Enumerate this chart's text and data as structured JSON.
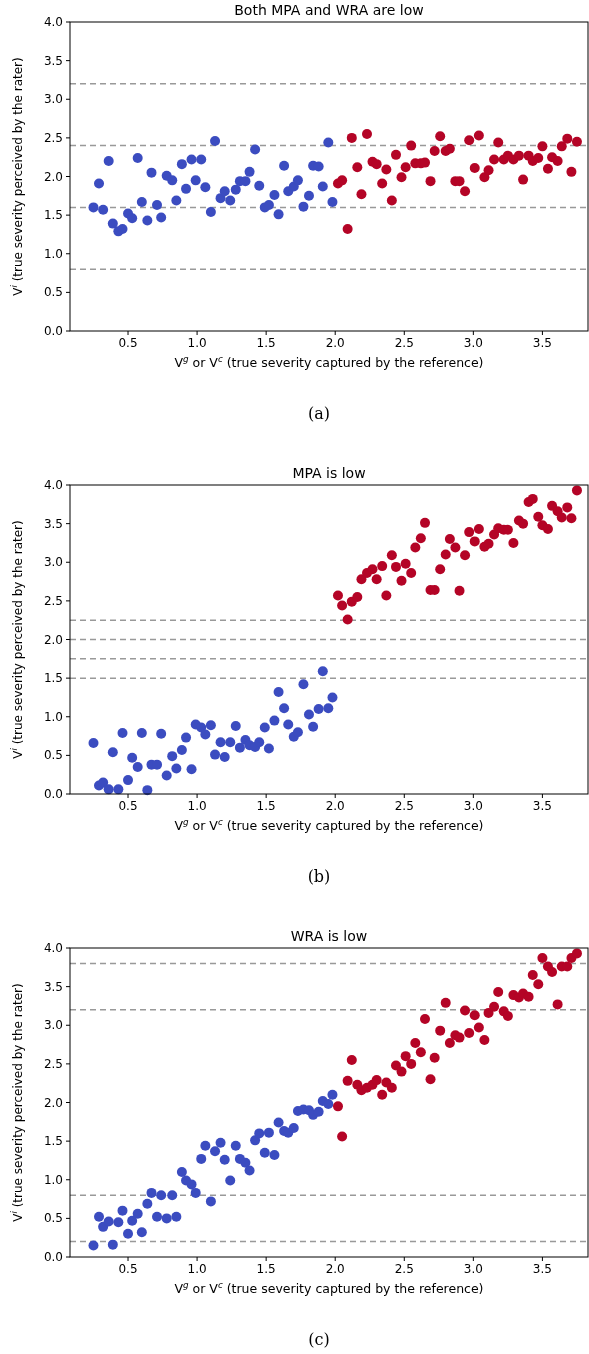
{
  "chart_data": [
    {
      "type": "scatter",
      "title": "Both MPA and WRA are low",
      "xlabel": "V$^{g}$ or V$^{c}$ (true severity captured by the reference)",
      "ylabel": "V$^{i}$ (true severity perceived by the rater)",
      "annotations": [
        "(a)"
      ],
      "marker": "circle",
      "grid": false,
      "xlim": [
        0.08,
        3.83
      ],
      "ylim": [
        0,
        4
      ],
      "xticks": [
        {
          "value": 0.5,
          "label": "0.5"
        },
        {
          "value": 1,
          "label": "1.0"
        },
        {
          "value": 1.5,
          "label": "1.5"
        },
        {
          "value": 2,
          "label": "2.0"
        },
        {
          "value": 2.5,
          "label": "2.5"
        },
        {
          "value": 3,
          "label": "3.0"
        },
        {
          "value": 3.5,
          "label": "3.5"
        }
      ],
      "yticks": [
        {
          "value": 0,
          "label": "0.0"
        },
        {
          "value": 0.5,
          "label": "0.5"
        },
        {
          "value": 1,
          "label": "1.0"
        },
        {
          "value": 1.5,
          "label": "1.5"
        },
        {
          "value": 2,
          "label": "2.0"
        },
        {
          "value": 2.5,
          "label": "2.5"
        },
        {
          "value": 3,
          "label": "3.0"
        },
        {
          "value": 3.5,
          "label": "3.5"
        },
        {
          "value": 4,
          "label": "4.0"
        }
      ],
      "ref_lines": [
        {
          "axis": "y",
          "value": 3.2,
          "color": "#999999",
          "line_style": "dashed"
        },
        {
          "axis": "y",
          "value": 2.4,
          "color": "#999999",
          "line_style": "dashed"
        },
        {
          "axis": "y",
          "value": 1.6,
          "color": "#999999",
          "line_style": "dashed"
        },
        {
          "axis": "y",
          "value": 0.8,
          "color": "#999999",
          "line_style": "dashed"
        }
      ],
      "series": [
        {
          "color": "#3b4cc0",
          "x": [
            0.25,
            0.29,
            0.32,
            0.36,
            0.39,
            0.43,
            0.46,
            0.5,
            0.53,
            0.57,
            0.6,
            0.64,
            0.67,
            0.71,
            0.74,
            0.78,
            0.82,
            0.85,
            0.89,
            0.92,
            0.96,
            0.99,
            1.03,
            1.06,
            1.1,
            1.13,
            1.17,
            1.2,
            1.24,
            1.28,
            1.31,
            1.35,
            1.38,
            1.42,
            1.45,
            1.49,
            1.52,
            1.56,
            1.59,
            1.63,
            1.66,
            1.7,
            1.73,
            1.77,
            1.81,
            1.84,
            1.88,
            1.91,
            1.95,
            1.98
          ],
          "values": [
            1.6,
            1.91,
            1.57,
            2.2,
            1.39,
            1.29,
            1.32,
            1.52,
            1.46,
            2.24,
            1.67,
            1.43,
            2.05,
            1.63,
            1.47,
            2.01,
            1.95,
            1.69,
            2.16,
            1.84,
            2.22,
            1.95,
            2.22,
            1.86,
            1.54,
            2.46,
            1.72,
            1.81,
            1.69,
            1.83,
            1.94,
            1.94,
            2.06,
            2.35,
            1.88,
            1.6,
            1.63,
            1.76,
            1.51,
            2.14,
            1.81,
            1.87,
            1.95,
            1.61,
            1.75,
            2.14,
            2.13,
            1.87,
            2.44,
            1.67
          ]
        },
        {
          "color": "#b40426",
          "x": [
            2.02,
            2.05,
            2.09,
            2.12,
            2.16,
            2.19,
            2.23,
            2.27,
            2.3,
            2.34,
            2.37,
            2.41,
            2.44,
            2.48,
            2.51,
            2.55,
            2.58,
            2.62,
            2.65,
            2.69,
            2.72,
            2.76,
            2.8,
            2.83,
            2.87,
            2.9,
            2.94,
            2.97,
            3.01,
            3.04,
            3.08,
            3.11,
            3.15,
            3.18,
            3.22,
            3.25,
            3.29,
            3.33,
            3.36,
            3.4,
            3.43,
            3.47,
            3.5,
            3.54,
            3.57,
            3.61,
            3.64,
            3.68,
            3.71,
            3.75
          ],
          "values": [
            1.91,
            1.95,
            1.32,
            2.5,
            2.12,
            1.77,
            2.55,
            2.19,
            2.16,
            1.91,
            2.09,
            1.69,
            2.28,
            1.99,
            2.12,
            2.4,
            2.17,
            2.17,
            2.18,
            1.94,
            2.33,
            2.52,
            2.33,
            2.36,
            1.94,
            1.94,
            1.81,
            2.47,
            2.11,
            2.53,
            1.99,
            2.08,
            2.22,
            2.44,
            2.22,
            2.27,
            2.22,
            2.27,
            1.96,
            2.27,
            2.2,
            2.24,
            2.39,
            2.1,
            2.25,
            2.2,
            2.39,
            2.49,
            2.06,
            2.45
          ]
        }
      ]
    },
    {
      "type": "scatter",
      "title": "MPA is low",
      "xlabel": "V$^{g}$ or V$^{c}$ (true severity captured by the reference)",
      "ylabel": "V$^{i}$ (true severity perceived by the rater)",
      "annotations": [
        "(b)"
      ],
      "marker": "circle",
      "grid": false,
      "xlim": [
        0.08,
        3.83
      ],
      "ylim": [
        0,
        4
      ],
      "xticks": [
        {
          "value": 0.5,
          "label": "0.5"
        },
        {
          "value": 1,
          "label": "1.0"
        },
        {
          "value": 1.5,
          "label": "1.5"
        },
        {
          "value": 2,
          "label": "2.0"
        },
        {
          "value": 2.5,
          "label": "2.5"
        },
        {
          "value": 3,
          "label": "3.0"
        },
        {
          "value": 3.5,
          "label": "3.5"
        }
      ],
      "yticks": [
        {
          "value": 0,
          "label": "0.0"
        },
        {
          "value": 0.5,
          "label": "0.5"
        },
        {
          "value": 1,
          "label": "1.0"
        },
        {
          "value": 1.5,
          "label": "1.5"
        },
        {
          "value": 2,
          "label": "2.0"
        },
        {
          "value": 2.5,
          "label": "2.5"
        },
        {
          "value": 3,
          "label": "3.0"
        },
        {
          "value": 3.5,
          "label": "3.5"
        },
        {
          "value": 4,
          "label": "4.0"
        }
      ],
      "ref_lines": [
        {
          "axis": "y",
          "value": 2.25,
          "color": "#999999",
          "line_style": "dashed"
        },
        {
          "axis": "y",
          "value": 2.0,
          "color": "#999999",
          "line_style": "dashed"
        },
        {
          "axis": "y",
          "value": 1.75,
          "color": "#999999",
          "line_style": "dashed"
        },
        {
          "axis": "y",
          "value": 1.5,
          "color": "#999999",
          "line_style": "dashed"
        }
      ],
      "series": [
        {
          "color": "#3b4cc0",
          "x": [
            0.25,
            0.29,
            0.32,
            0.36,
            0.39,
            0.43,
            0.46,
            0.5,
            0.53,
            0.57,
            0.6,
            0.64,
            0.67,
            0.71,
            0.74,
            0.78,
            0.82,
            0.85,
            0.89,
            0.92,
            0.96,
            0.99,
            1.03,
            1.06,
            1.1,
            1.13,
            1.17,
            1.2,
            1.24,
            1.28,
            1.31,
            1.35,
            1.38,
            1.42,
            1.45,
            1.49,
            1.52,
            1.56,
            1.59,
            1.63,
            1.66,
            1.7,
            1.73,
            1.77,
            1.81,
            1.84,
            1.88,
            1.91,
            1.95,
            1.98
          ],
          "values": [
            0.66,
            0.11,
            0.15,
            0.06,
            0.54,
            0.06,
            0.79,
            0.18,
            0.47,
            0.35,
            0.79,
            0.05,
            0.38,
            0.38,
            0.78,
            0.24,
            0.49,
            0.33,
            0.57,
            0.73,
            0.32,
            0.9,
            0.86,
            0.77,
            0.89,
            0.51,
            0.67,
            0.48,
            0.67,
            0.88,
            0.6,
            0.7,
            0.63,
            0.61,
            0.67,
            0.86,
            0.59,
            0.95,
            1.32,
            1.11,
            0.9,
            0.74,
            0.8,
            1.42,
            1.03,
            0.87,
            1.1,
            1.59,
            1.11,
            1.25
          ]
        },
        {
          "color": "#b40426",
          "x": [
            2.02,
            2.05,
            2.09,
            2.12,
            2.16,
            2.19,
            2.23,
            2.27,
            2.3,
            2.34,
            2.37,
            2.41,
            2.44,
            2.48,
            2.51,
            2.55,
            2.58,
            2.62,
            2.65,
            2.69,
            2.72,
            2.76,
            2.8,
            2.83,
            2.87,
            2.9,
            2.94,
            2.97,
            3.01,
            3.04,
            3.08,
            3.11,
            3.15,
            3.18,
            3.22,
            3.25,
            3.29,
            3.33,
            3.36,
            3.4,
            3.43,
            3.47,
            3.5,
            3.54,
            3.57,
            3.61,
            3.64,
            3.68,
            3.71,
            3.75
          ],
          "values": [
            2.57,
            2.44,
            2.26,
            2.49,
            2.55,
            2.78,
            2.86,
            2.91,
            2.78,
            2.95,
            2.57,
            3.09,
            2.94,
            2.76,
            2.98,
            2.86,
            3.19,
            3.31,
            3.51,
            2.64,
            2.64,
            2.91,
            3.1,
            3.3,
            3.19,
            2.63,
            3.09,
            3.39,
            3.27,
            3.43,
            3.2,
            3.24,
            3.36,
            3.44,
            3.42,
            3.42,
            3.25,
            3.54,
            3.5,
            3.78,
            3.82,
            3.59,
            3.48,
            3.43,
            3.73,
            3.66,
            3.58,
            3.71,
            3.57,
            3.93
          ]
        }
      ]
    },
    {
      "type": "scatter",
      "title": "WRA is low",
      "xlabel": "V$^{g}$ or V$^{c}$ (true severity captured by the reference)",
      "ylabel": "V$^{i}$ (true severity perceived by the rater)",
      "annotations": [
        "(c)"
      ],
      "marker": "circle",
      "grid": false,
      "xlim": [
        0.08,
        3.83
      ],
      "ylim": [
        0,
        4
      ],
      "xticks": [
        {
          "value": 0.5,
          "label": "0.5"
        },
        {
          "value": 1,
          "label": "1.0"
        },
        {
          "value": 1.5,
          "label": "1.5"
        },
        {
          "value": 2,
          "label": "2.0"
        },
        {
          "value": 2.5,
          "label": "2.5"
        },
        {
          "value": 3,
          "label": "3.0"
        },
        {
          "value": 3.5,
          "label": "3.5"
        }
      ],
      "yticks": [
        {
          "value": 0,
          "label": "0.0"
        },
        {
          "value": 0.5,
          "label": "0.5"
        },
        {
          "value": 1,
          "label": "1.0"
        },
        {
          "value": 1.5,
          "label": "1.5"
        },
        {
          "value": 2,
          "label": "2.0"
        },
        {
          "value": 2.5,
          "label": "2.5"
        },
        {
          "value": 3,
          "label": "3.0"
        },
        {
          "value": 3.5,
          "label": "3.5"
        },
        {
          "value": 4,
          "label": "4.0"
        }
      ],
      "ref_lines": [
        {
          "axis": "y",
          "value": 3.8,
          "color": "#999999",
          "line_style": "dashed"
        },
        {
          "axis": "y",
          "value": 3.2,
          "color": "#999999",
          "line_style": "dashed"
        },
        {
          "axis": "y",
          "value": 0.8,
          "color": "#999999",
          "line_style": "dashed"
        },
        {
          "axis": "y",
          "value": 0.2,
          "color": "#999999",
          "line_style": "dashed"
        }
      ],
      "series": [
        {
          "color": "#3b4cc0",
          "x": [
            0.25,
            0.29,
            0.32,
            0.36,
            0.39,
            0.43,
            0.46,
            0.5,
            0.53,
            0.57,
            0.6,
            0.64,
            0.67,
            0.71,
            0.74,
            0.78,
            0.82,
            0.85,
            0.89,
            0.92,
            0.96,
            0.99,
            1.03,
            1.06,
            1.1,
            1.13,
            1.17,
            1.2,
            1.24,
            1.28,
            1.31,
            1.35,
            1.38,
            1.42,
            1.45,
            1.49,
            1.52,
            1.56,
            1.59,
            1.63,
            1.66,
            1.7,
            1.73,
            1.77,
            1.81,
            1.84,
            1.88,
            1.91,
            1.95,
            1.98
          ],
          "values": [
            0.15,
            0.52,
            0.39,
            0.46,
            0.16,
            0.45,
            0.6,
            0.3,
            0.47,
            0.56,
            0.32,
            0.69,
            0.83,
            0.52,
            0.8,
            0.5,
            0.8,
            0.52,
            1.1,
            0.99,
            0.94,
            0.83,
            1.27,
            1.44,
            0.72,
            1.37,
            1.48,
            1.26,
            0.99,
            1.44,
            1.27,
            1.22,
            1.12,
            1.51,
            1.6,
            1.35,
            1.61,
            1.32,
            1.74,
            1.63,
            1.61,
            1.67,
            1.89,
            1.91,
            1.9,
            1.84,
            1.88,
            2.02,
            1.98,
            2.1
          ]
        },
        {
          "color": "#b40426",
          "x": [
            2.02,
            2.05,
            2.09,
            2.12,
            2.16,
            2.19,
            2.23,
            2.27,
            2.3,
            2.34,
            2.37,
            2.41,
            2.44,
            2.48,
            2.51,
            2.55,
            2.58,
            2.62,
            2.65,
            2.69,
            2.72,
            2.76,
            2.8,
            2.83,
            2.87,
            2.9,
            2.94,
            2.97,
            3.01,
            3.04,
            3.08,
            3.11,
            3.15,
            3.18,
            3.22,
            3.25,
            3.29,
            3.33,
            3.36,
            3.4,
            3.43,
            3.47,
            3.5,
            3.54,
            3.57,
            3.61,
            3.64,
            3.68,
            3.71,
            3.75
          ],
          "values": [
            1.95,
            1.56,
            2.28,
            2.55,
            2.23,
            2.16,
            2.19,
            2.23,
            2.29,
            2.1,
            2.26,
            2.19,
            2.48,
            2.4,
            2.6,
            2.5,
            2.77,
            2.65,
            3.08,
            2.3,
            2.58,
            2.93,
            3.29,
            2.77,
            2.87,
            2.84,
            3.19,
            2.9,
            3.13,
            2.97,
            2.81,
            3.16,
            3.24,
            3.43,
            3.18,
            3.12,
            3.39,
            3.36,
            3.41,
            3.37,
            3.65,
            3.53,
            3.87,
            3.76,
            3.69,
            3.27,
            3.76,
            3.76,
            3.87,
            3.93
          ]
        }
      ]
    }
  ]
}
